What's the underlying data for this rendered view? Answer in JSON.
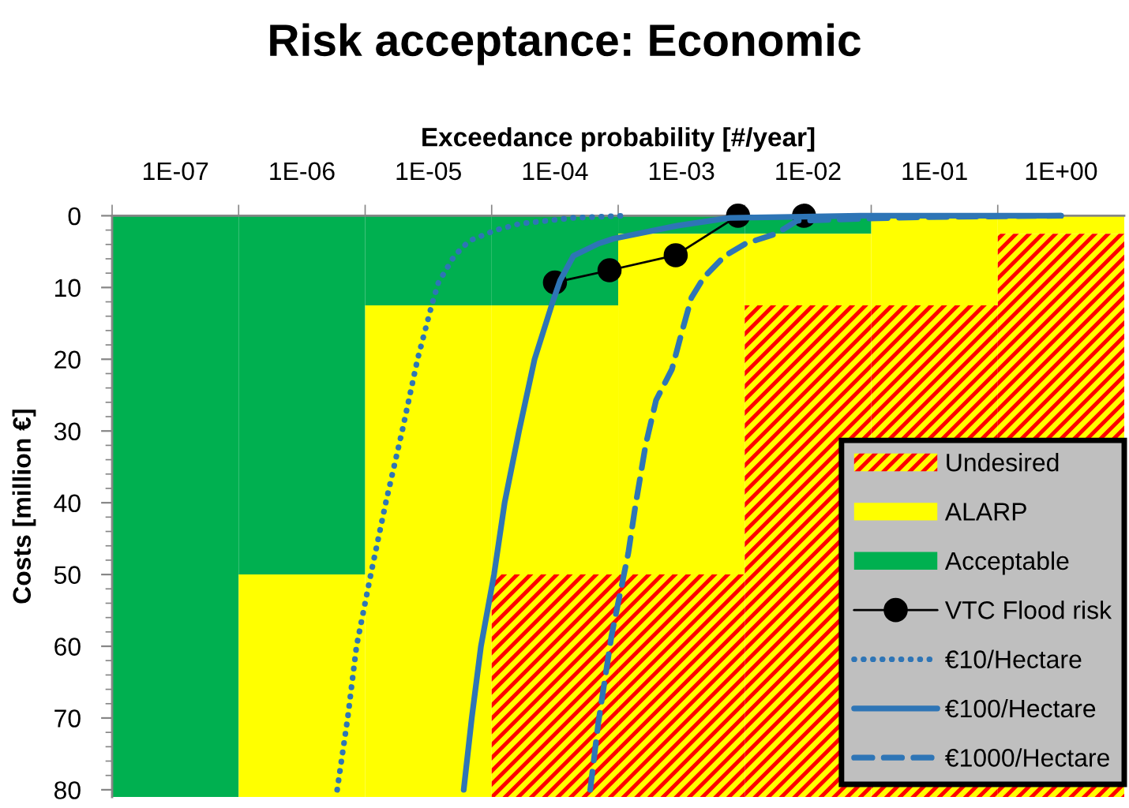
{
  "chart_data": {
    "type": "bar",
    "title": "Risk acceptance: Economic",
    "xlabel": "Exceedance probability [#/year]",
    "ylabel": "Costs [million €]",
    "x": [
      1e-07,
      1e-06,
      1e-05,
      0.0001,
      0.001,
      0.01,
      0.1,
      1
    ],
    "stacked": true,
    "series": [
      {
        "name": "Acceptable",
        "color": "#00b050",
        "values": [
          81,
          50,
          12.5,
          12.5,
          2.5,
          2.5,
          0,
          0
        ]
      },
      {
        "name": "ALARP",
        "color": "#ffff00",
        "values": [
          0,
          31,
          68.5,
          37.5,
          47.5,
          10,
          12.5,
          2.5
        ]
      },
      {
        "name": "Undesired",
        "color": "#ff0000",
        "values": [
          0,
          0,
          0,
          31,
          31,
          68.5,
          68.5,
          78.5
        ]
      },
      {
        "name": "VTC Flood risk",
        "type": "line",
        "color": "#000000",
        "marker": "circle",
        "line_style": "solid",
        "x": [
          0.0001,
          0.00027,
          0.0009,
          0.0028,
          0.0093
        ],
        "values": [
          9.3,
          7.6,
          5.5,
          0,
          0
        ]
      },
      {
        "name": "€10/Hectare",
        "type": "line",
        "color": "#2e75b6",
        "marker": "none",
        "line_style": "dotted",
        "x": [
          1.9e-06,
          2.3e-06,
          2.7e-06,
          3.5e-06,
          4.6e-06,
          6.2e-06,
          8.2e-06,
          1.06e-05,
          1.2e-05,
          1.6e-05,
          2.1e-05,
          3.4e-05,
          5.3e-05,
          0.00014,
          0.00036
        ],
        "values": [
          80,
          70,
          60,
          50,
          40,
          30,
          20,
          12.5,
          9.3,
          5.6,
          3.5,
          2,
          1.1,
          0.3,
          0
        ]
      },
      {
        "name": "€100/Hectare",
        "type": "line",
        "color": "#2e75b6",
        "marker": "none",
        "line_style": "solid",
        "x": [
          1.9e-05,
          2.2e-05,
          2.6e-05,
          3.3e-05,
          4e-05,
          5.2e-05,
          6.9e-05,
          9.6e-05,
          0.00011,
          0.00014,
          0.00022,
          0.00029,
          0.00092,
          0.0024,
          0.026,
          1.0
        ],
        "values": [
          80,
          70,
          60,
          50,
          40,
          30,
          20,
          12,
          9,
          5.6,
          3.9,
          3.2,
          1.4,
          0.3,
          0,
          0
        ]
      },
      {
        "name": "€1000/Hectare",
        "type": "line",
        "color": "#2e75b6",
        "marker": "none",
        "line_style": "dashed",
        "x": [
          0.00019,
          0.00022,
          0.00028,
          0.00038,
          0.00043,
          0.00052,
          0.00063,
          0.00084,
          0.001,
          0.0012,
          0.0015,
          0.0022,
          0.0032,
          0.0056,
          0.0082,
          0.03,
          0.08,
          1.0
        ],
        "values": [
          80,
          70.7,
          58.5,
          47,
          40.7,
          32,
          25.7,
          21.4,
          16.4,
          11.4,
          8.6,
          5.6,
          3.9,
          2.5,
          0.7,
          0.4,
          0.2,
          0
        ]
      }
    ],
    "log": "x",
    "xlim": [
      3.16e-08,
      3.16
    ],
    "xticks": [
      {
        "value": 1e-07,
        "label": "1E-07"
      },
      {
        "value": 1e-06,
        "label": "1E-06"
      },
      {
        "value": 1e-05,
        "label": "1E-05"
      },
      {
        "value": 0.0001,
        "label": "1E-04"
      },
      {
        "value": 0.001,
        "label": "1E-03"
      },
      {
        "value": 0.01,
        "label": "1E-02"
      },
      {
        "value": 0.1,
        "label": "1E-01"
      },
      {
        "value": 1,
        "label": "1E+00"
      },
      {
        "value": 3.16e-08,
        "label": null
      },
      {
        "value": 3.16e-07,
        "label": null
      },
      {
        "value": 3.16e-06,
        "label": null
      },
      {
        "value": 3.16e-05,
        "label": null
      },
      {
        "value": 0.000316,
        "label": null
      },
      {
        "value": 0.00316,
        "label": null
      },
      {
        "value": 0.0316,
        "label": null
      },
      {
        "value": 0.316,
        "label": null
      }
    ],
    "ylim": [
      81,
      0
    ],
    "yticks": [
      0,
      10,
      20,
      30,
      40,
      50,
      60,
      70,
      80,
      {
        "value": 2,
        "label": null
      },
      {
        "value": 4,
        "label": null
      },
      {
        "value": 6,
        "label": null
      },
      {
        "value": 8,
        "label": null
      },
      {
        "value": 12,
        "label": null
      },
      {
        "value": 14,
        "label": null
      },
      {
        "value": 16,
        "label": null
      },
      {
        "value": 18,
        "label": null
      },
      {
        "value": 22,
        "label": null
      },
      {
        "value": 24,
        "label": null
      },
      {
        "value": 26,
        "label": null
      },
      {
        "value": 28,
        "label": null
      },
      {
        "value": 32,
        "label": null
      },
      {
        "value": 34,
        "label": null
      },
      {
        "value": 36,
        "label": null
      },
      {
        "value": 38,
        "label": null
      },
      {
        "value": 42,
        "label": null
      },
      {
        "value": 44,
        "label": null
      },
      {
        "value": 46,
        "label": null
      },
      {
        "value": 48,
        "label": null
      },
      {
        "value": 52,
        "label": null
      },
      {
        "value": 54,
        "label": null
      },
      {
        "value": 56,
        "label": null
      },
      {
        "value": 58,
        "label": null
      },
      {
        "value": 62,
        "label": null
      },
      {
        "value": 64,
        "label": null
      },
      {
        "value": 66,
        "label": null
      },
      {
        "value": 68,
        "label": null
      },
      {
        "value": 72,
        "label": null
      },
      {
        "value": 74,
        "label": null
      },
      {
        "value": 76,
        "label": null
      },
      {
        "value": 78,
        "label": null
      }
    ],
    "legend": "bottom right"
  }
}
